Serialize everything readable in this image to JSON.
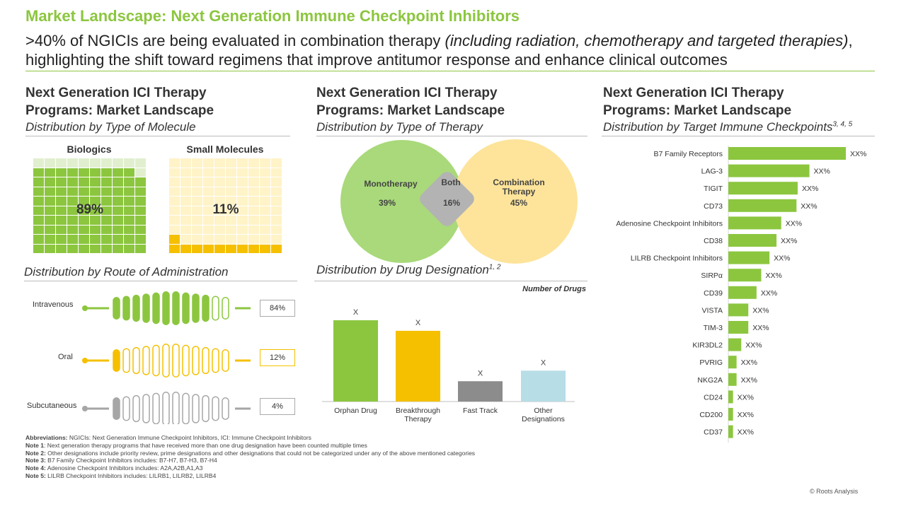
{
  "header": {
    "title": "Market Landscape: Next Generation Immune Checkpoint Inhibitors",
    "subtitle_part1": ">40% of NGICIs are being evaluated in combination therapy ",
    "subtitle_italic": "(including radiation, chemotherapy and targeted therapies)",
    "subtitle_part2": ", highlighting the shift toward regimens that improve antitumor response and enhance clinical outcomes"
  },
  "panels": {
    "molecule": {
      "title_line1": "Next Generation ICI Therapy",
      "title_line2": "Programs: Market Landscape",
      "subtitle": "Distribution by Type of Molecule"
    },
    "therapy": {
      "title_line1": "Next Generation ICI Therapy",
      "title_line2": "Programs: Market Landscape",
      "subtitle": "Distribution by Type of Therapy"
    },
    "checkpoints": {
      "title_line1": "Next Generation ICI Therapy",
      "title_line2": "Programs: Market Landscape",
      "subtitle": "Distribution by Target Immune Checkpoints",
      "subtitle_sup": "3, 4, 5"
    },
    "route": {
      "subtitle": "Distribution by Route of Administration"
    },
    "designation": {
      "subtitle": "Distribution by Drug Designation",
      "subtitle_sup": "1, 2",
      "unit_label": "Number of Drugs"
    }
  },
  "chart_data": [
    {
      "type": "waffle",
      "id": "molecule",
      "categories": [
        "Biologics",
        "Small Molecules"
      ],
      "values": [
        89,
        11
      ],
      "labels": [
        "89%",
        "11%"
      ],
      "colors": [
        "#8cc63f",
        "#f5c000"
      ]
    },
    {
      "type": "venn",
      "id": "therapy",
      "sets": [
        {
          "name": "Monotherapy",
          "value": 39,
          "label": "39%",
          "color": "#a9d97a"
        },
        {
          "name": "Both",
          "value": 16,
          "label": "16%",
          "color": "#b3b3b3"
        },
        {
          "name": "Combination Therapy",
          "name_line1": "Combination",
          "name_line2": "Therapy",
          "value": 45,
          "label": "45%",
          "color": "#fde49a"
        }
      ]
    },
    {
      "type": "bar",
      "id": "route",
      "orientation": "horizontal",
      "categories": [
        "Intravenous",
        "Oral",
        "Subcutaneous"
      ],
      "values": [
        84,
        12,
        4
      ],
      "labels": [
        "84%",
        "12%",
        "4%"
      ],
      "colors": [
        "#8cc63f",
        "#f5c000",
        "#a6a6a6"
      ]
    },
    {
      "type": "bar",
      "id": "designation",
      "categories": [
        "Orphan Drug",
        "Breakthrough Therapy",
        "Fast Track",
        "Other Designations"
      ],
      "category_lines": [
        [
          "Orphan Drug"
        ],
        [
          "Breakthrough",
          "Therapy"
        ],
        [
          "Fast Track"
        ],
        [
          "Other",
          "Designations"
        ]
      ],
      "values": [
        100,
        87,
        25,
        38
      ],
      "value_labels": [
        "X",
        "X",
        "X",
        "X"
      ],
      "colors": [
        "#8cc63f",
        "#f5c000",
        "#8c8c8c",
        "#b7dde6"
      ],
      "ylabel": "Number of Drugs"
    },
    {
      "type": "bar",
      "id": "checkpoints",
      "orientation": "horizontal",
      "categories": [
        "B7 Family Receptors",
        "LAG-3",
        "TIGIT",
        "CD73",
        "Adenosine Checkpoint Inhibitors",
        "CD38",
        "LILRB Checkpoint Inhibitors",
        "SIRPα",
        "CD39",
        "VISTA",
        "TIM-3",
        "KIR3DL2",
        "PVRIG",
        "NKG2A",
        "CD24",
        "CD200",
        "CD37"
      ],
      "values": [
        100,
        69,
        59,
        58,
        45,
        41,
        35,
        28,
        24,
        17,
        17,
        11,
        7,
        7,
        4,
        4,
        4
      ],
      "value_labels": [
        "XX%",
        "XX%",
        "XX%",
        "XX%",
        "XX%",
        "XX%",
        "XX%",
        "XX%",
        "XX%",
        "XX%",
        "XX%",
        "XX%",
        "XX%",
        "XX%",
        "XX%",
        "XX%",
        "XX%"
      ],
      "color": "#8cc63f"
    }
  ],
  "footnotes": [
    {
      "key": "Abbreviations:",
      "text": " NGICIs: Next Generation Immune Checkpoint Inhibitors, ICI: Immune Checkpoint Inhibitors"
    },
    {
      "key": "Note 1",
      "text": ": Next generation therapy programs that have received more than one drug designation have been counted multiple times"
    },
    {
      "key": "Note 2:",
      "text": " Other designations include priority review, prime designations and other designations that could not be categorized under any of the above mentioned categories"
    },
    {
      "key": "Note 3:",
      "text": " B7 Family Checkpoint Inhibitors includes: B7-H7, B7-H3, B7-H4"
    },
    {
      "key": "Note 4:",
      "text": " Adenosine Checkpoint Inhibitors includes: A2A,A2B,A1,A3"
    },
    {
      "key": "Note 5:",
      "text": " LILRB Checkpoint Inhibitors includes: LILRB1, LILRB2, LILRB4"
    }
  ],
  "copyright": "© Roots Analysis"
}
